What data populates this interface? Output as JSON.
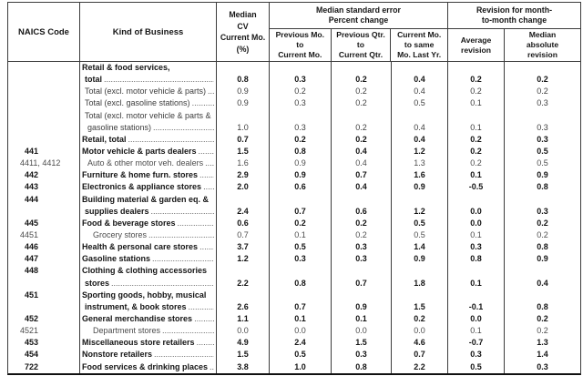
{
  "table": {
    "header": {
      "naics": "NAICS Code",
      "kind": "Kind of Business",
      "median_cv": [
        "Median",
        "CV",
        "Current Mo.",
        "(%)"
      ],
      "mse_group": [
        "Median standard error",
        "Percent change"
      ],
      "mse_col1": [
        "Previous Mo.",
        "to",
        "Current Mo."
      ],
      "mse_col2": [
        "Previous Qtr.",
        "to",
        "Current Qtr."
      ],
      "mse_col3": [
        "Current Mo.",
        "to same",
        "Mo. Last Yr."
      ],
      "revision_group": [
        "Revision for month-",
        "to-month change"
      ],
      "revision_col1": [
        "Average",
        "revision"
      ],
      "revision_col2": [
        "Median",
        "absolute",
        "revision"
      ]
    },
    "rows": [
      {
        "code": "",
        "label": "Retail & food services,",
        "indent": 0,
        "bold": true,
        "sub": false,
        "dots": false,
        "values": [
          "",
          "",
          "",
          "",
          "",
          ""
        ]
      },
      {
        "code": "",
        "label": "total",
        "indent": 1,
        "bold": true,
        "sub": false,
        "dots": true,
        "values": [
          "0.8",
          "0.3",
          "0.2",
          "0.4",
          "0.2",
          "0.2"
        ]
      },
      {
        "code": "",
        "label": "Total (excl. motor vehicle & parts)",
        "indent": 1,
        "bold": false,
        "sub": false,
        "dots": true,
        "values": [
          "0.9",
          "0.2",
          "0.2",
          "0.4",
          "0.2",
          "0.2"
        ]
      },
      {
        "code": "",
        "label": "Total (excl. gasoline stations)",
        "indent": 1,
        "bold": false,
        "sub": false,
        "dots": true,
        "values": [
          "0.9",
          "0.3",
          "0.2",
          "0.5",
          "0.1",
          "0.3"
        ]
      },
      {
        "code": "",
        "label": "Total (excl. motor vehicle & parts &",
        "indent": 1,
        "bold": false,
        "sub": false,
        "dots": false,
        "values": [
          "",
          "",
          "",
          "",
          "",
          ""
        ]
      },
      {
        "code": "",
        "label": "gasoline stations)",
        "indent": 2,
        "bold": false,
        "sub": false,
        "dots": true,
        "values": [
          "1.0",
          "0.3",
          "0.2",
          "0.4",
          "0.1",
          "0.3"
        ]
      },
      {
        "code": "",
        "label": "Retail, total",
        "indent": 0,
        "bold": true,
        "sub": false,
        "dots": true,
        "values": [
          "0.7",
          "0.2",
          "0.2",
          "0.4",
          "0.2",
          "0.3"
        ]
      },
      {
        "code": "441",
        "label": "Motor vehicle & parts dealers",
        "indent": 0,
        "bold": true,
        "sub": false,
        "dots": true,
        "values": [
          "1.5",
          "0.8",
          "0.4",
          "1.2",
          "0.2",
          "0.5"
        ]
      },
      {
        "code": "4411, 4412",
        "label": "Auto & other motor veh. dealers",
        "indent": 2,
        "bold": false,
        "sub": true,
        "dots": true,
        "values": [
          "1.6",
          "0.9",
          "0.4",
          "1.3",
          "0.2",
          "0.5"
        ]
      },
      {
        "code": "442",
        "label": "Furniture & home furn. stores",
        "indent": 0,
        "bold": true,
        "sub": false,
        "dots": true,
        "values": [
          "2.9",
          "0.9",
          "0.7",
          "1.6",
          "0.1",
          "0.9"
        ]
      },
      {
        "code": "443",
        "label": "Electronics & appliance stores",
        "indent": 0,
        "bold": true,
        "sub": false,
        "dots": true,
        "values": [
          "2.0",
          "0.6",
          "0.4",
          "0.9",
          "-0.5",
          "0.8"
        ]
      },
      {
        "code": "444",
        "label": "Building material & garden eq. &",
        "indent": 0,
        "bold": true,
        "sub": false,
        "dots": false,
        "values": [
          "",
          "",
          "",
          "",
          "",
          ""
        ]
      },
      {
        "code": "",
        "label": "supplies dealers",
        "indent": 1,
        "bold": true,
        "sub": false,
        "dots": true,
        "values": [
          "2.4",
          "0.7",
          "0.6",
          "1.2",
          "0.0",
          "0.3"
        ]
      },
      {
        "code": "445",
        "label": "Food & beverage stores",
        "indent": 0,
        "bold": true,
        "sub": false,
        "dots": true,
        "values": [
          "0.6",
          "0.2",
          "0.2",
          "0.5",
          "0.0",
          "0.2"
        ]
      },
      {
        "code": "4451",
        "label": "Grocery stores",
        "indent": 3,
        "bold": false,
        "sub": true,
        "dots": true,
        "values": [
          "0.7",
          "0.1",
          "0.2",
          "0.5",
          "0.1",
          "0.2"
        ]
      },
      {
        "code": "446",
        "label": "Health & personal care stores",
        "indent": 0,
        "bold": true,
        "sub": false,
        "dots": true,
        "values": [
          "3.7",
          "0.5",
          "0.3",
          "1.4",
          "0.3",
          "0.8"
        ]
      },
      {
        "code": "447",
        "label": "Gasoline stations",
        "indent": 0,
        "bold": true,
        "sub": false,
        "dots": true,
        "values": [
          "1.2",
          "0.3",
          "0.3",
          "0.9",
          "0.8",
          "0.9"
        ]
      },
      {
        "code": "448",
        "label": "Clothing & clothing accessories",
        "indent": 0,
        "bold": true,
        "sub": false,
        "dots": false,
        "values": [
          "",
          "",
          "",
          "",
          "",
          ""
        ]
      },
      {
        "code": "",
        "label": "stores",
        "indent": 1,
        "bold": true,
        "sub": false,
        "dots": true,
        "values": [
          "2.2",
          "0.8",
          "0.7",
          "1.8",
          "0.1",
          "0.4"
        ]
      },
      {
        "code": "451",
        "label": "Sporting goods, hobby, musical",
        "indent": 0,
        "bold": true,
        "sub": false,
        "dots": false,
        "values": [
          "",
          "",
          "",
          "",
          "",
          ""
        ]
      },
      {
        "code": "",
        "label": "instrument, & book stores",
        "indent": 1,
        "bold": true,
        "sub": false,
        "dots": true,
        "values": [
          "2.6",
          "0.7",
          "0.9",
          "1.5",
          "-0.1",
          "0.8"
        ]
      },
      {
        "code": "452",
        "label": "General merchandise stores",
        "indent": 0,
        "bold": true,
        "sub": false,
        "dots": true,
        "values": [
          "1.1",
          "0.1",
          "0.1",
          "0.2",
          "0.0",
          "0.2"
        ]
      },
      {
        "code": "4521",
        "label": "Department stores",
        "indent": 3,
        "bold": false,
        "sub": true,
        "dots": true,
        "values": [
          "0.0",
          "0.0",
          "0.0",
          "0.0",
          "0.1",
          "0.2"
        ]
      },
      {
        "code": "453",
        "label": "Miscellaneous store retailers",
        "indent": 0,
        "bold": true,
        "sub": false,
        "dots": true,
        "values": [
          "4.9",
          "2.4",
          "1.5",
          "4.6",
          "-0.7",
          "1.3"
        ]
      },
      {
        "code": "454",
        "label": "Nonstore retailers",
        "indent": 0,
        "bold": true,
        "sub": false,
        "dots": true,
        "values": [
          "1.5",
          "0.5",
          "0.3",
          "0.7",
          "0.3",
          "1.4"
        ]
      },
      {
        "code": "722",
        "label": "Food services & drinking places",
        "indent": 0,
        "bold": true,
        "sub": false,
        "dots": true,
        "values": [
          "3.8",
          "1.0",
          "0.8",
          "2.2",
          "0.5",
          "0.3"
        ]
      }
    ]
  }
}
